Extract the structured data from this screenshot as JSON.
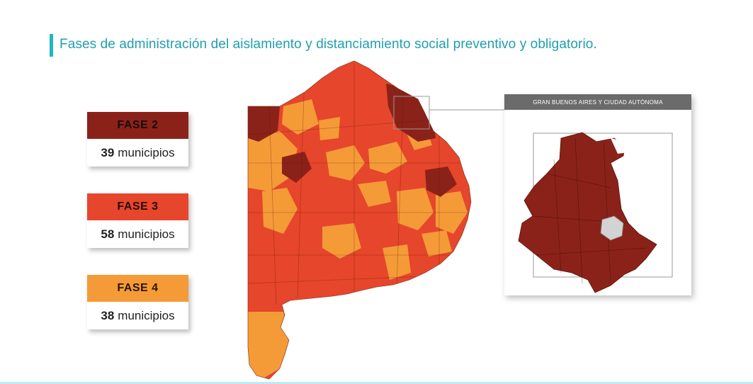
{
  "title": "Fases de administración del aislamiento y distanciamiento social preventivo y obligatorio.",
  "colors": {
    "fase2": "#8b2219",
    "fase3": "#e6462b",
    "fase4": "#f49b38",
    "accent": "#1fb6c2"
  },
  "legend": [
    {
      "label": "FASE 2",
      "count": "39",
      "unit": "municipios"
    },
    {
      "label": "FASE 3",
      "count": "58",
      "unit": "municipios"
    },
    {
      "label": "FASE 4",
      "count": "38",
      "unit": "municipios"
    }
  ],
  "inset": {
    "title": "GRAN BUENOS AIRES Y CIUDAD AUTÓNOMA"
  }
}
